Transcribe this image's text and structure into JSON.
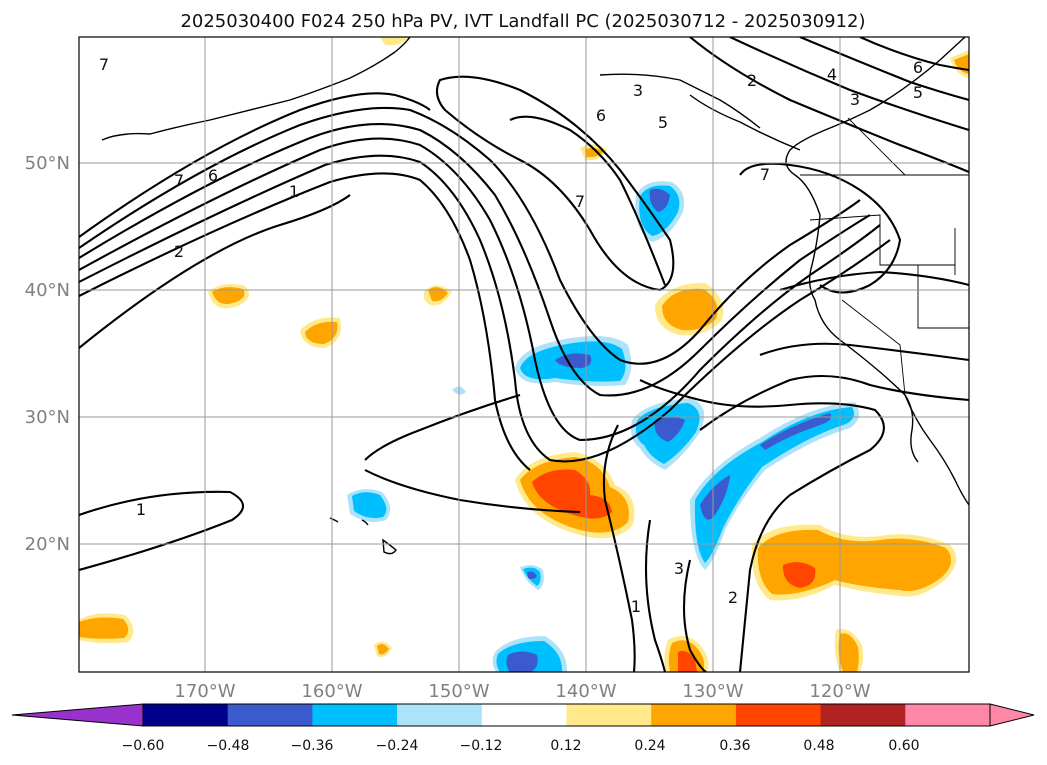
{
  "title": "2025030400 F024 250 hPa PV, IVT Landfall PC (2025030712 - 2025030912)",
  "lat_labels": [
    "50°N",
    "40°N",
    "30°N",
    "20°N"
  ],
  "lon_labels": [
    "170°W",
    "160°W",
    "150°W",
    "140°W",
    "130°W",
    "120°W"
  ],
  "contour_labels": [
    "7",
    "7",
    "6",
    "1",
    "2",
    "6",
    "5",
    "3",
    "7",
    "7",
    "2",
    "4",
    "3",
    "6",
    "5",
    "1",
    "1",
    "3",
    "2"
  ],
  "colorbar": {
    "tick_labels": [
      "−0.60",
      "−0.48",
      "−0.36",
      "−0.24",
      "−0.12",
      "0.12",
      "0.24",
      "0.36",
      "0.48",
      "0.60"
    ],
    "colors": [
      "#9932CC",
      "#00008B",
      "#3A5ACD",
      "#00BFFF",
      "#ADE3F8",
      "#FFFFFF",
      "#FFE98A",
      "#FFA500",
      "#FF4500",
      "#B22222",
      "#FF88A8",
      "#FF88A8"
    ]
  },
  "map": {
    "lat_range": [
      "10°N",
      "60°N"
    ],
    "lon_range": [
      "180°",
      "110°W"
    ],
    "shading": "IVT landfall PC (positive: yellow/orange/red, negative: blue)",
    "contours": "250 hPa PV (black)"
  }
}
